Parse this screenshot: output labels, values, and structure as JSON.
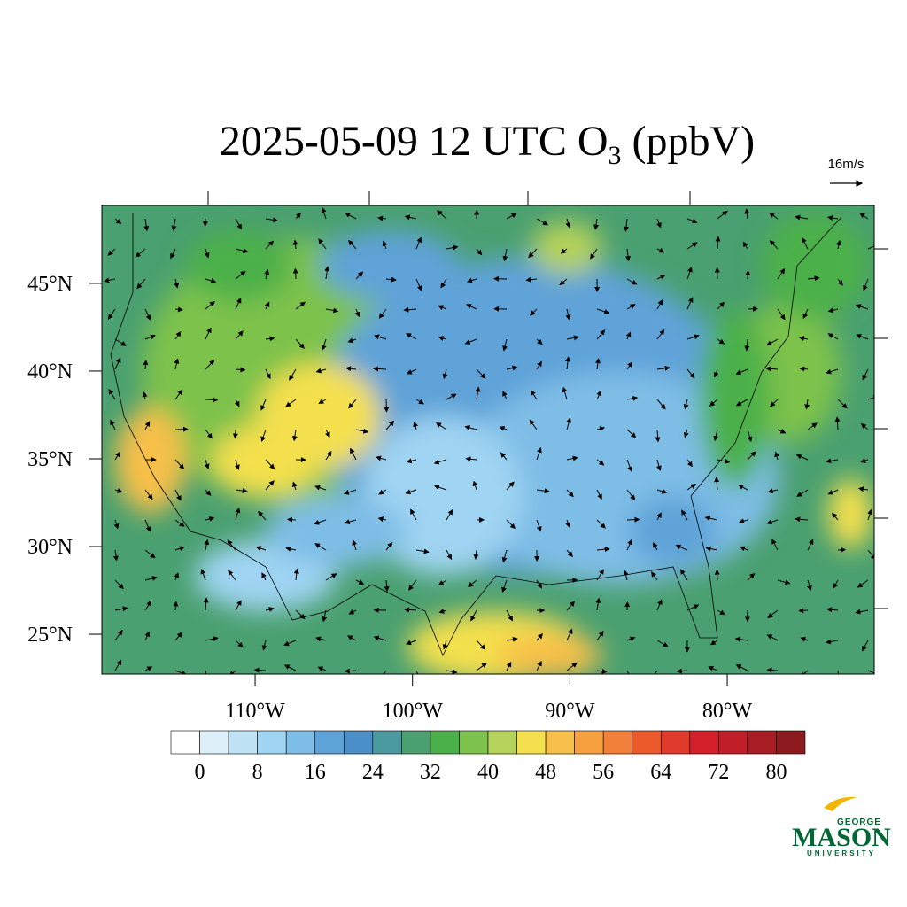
{
  "map": {
    "type": "contour-map",
    "title": {
      "main": "2025-05-09 12 UTC O",
      "sub": "3",
      "tail": " (ppbV)"
    },
    "wind_reference": "16m/s",
    "xlim": [
      -119.74,
      -70.66
    ],
    "ylim": [
      22.73,
      49.44
    ],
    "xticks": [
      {
        "value": -110,
        "label": "110°W"
      },
      {
        "value": -100,
        "label": "100°W"
      },
      {
        "value": -90,
        "label": "90°W"
      },
      {
        "value": -80,
        "label": "80°W"
      }
    ],
    "yticks": [
      {
        "value": 25,
        "label": "25°N"
      },
      {
        "value": 30,
        "label": "30°N"
      },
      {
        "value": 35,
        "label": "35°N"
      },
      {
        "value": 40,
        "label": "40°N"
      },
      {
        "value": 45,
        "label": "45°N"
      }
    ],
    "colorbar": {
      "colors": [
        "#ffffff",
        "#ddf0fa",
        "#bfe3f5",
        "#9fd4f2",
        "#7ebde6",
        "#5ea3d8",
        "#4a8fc8",
        "#4a9aa0",
        "#4aa070",
        "#4cb04a",
        "#7dc24c",
        "#b5d25a",
        "#f4e04e",
        "#f7c04a",
        "#f6a040",
        "#f3803a",
        "#ec5a2c",
        "#e03a2c",
        "#d3202a",
        "#c01f2a",
        "#a81c24",
        "#8c1a1e"
      ],
      "ticks": [
        0,
        8,
        16,
        24,
        32,
        40,
        48,
        56,
        64,
        72,
        80
      ]
    },
    "logo": {
      "top": "GEORGE",
      "main": "MASON",
      "bottom": "UNIVERSITY"
    }
  }
}
